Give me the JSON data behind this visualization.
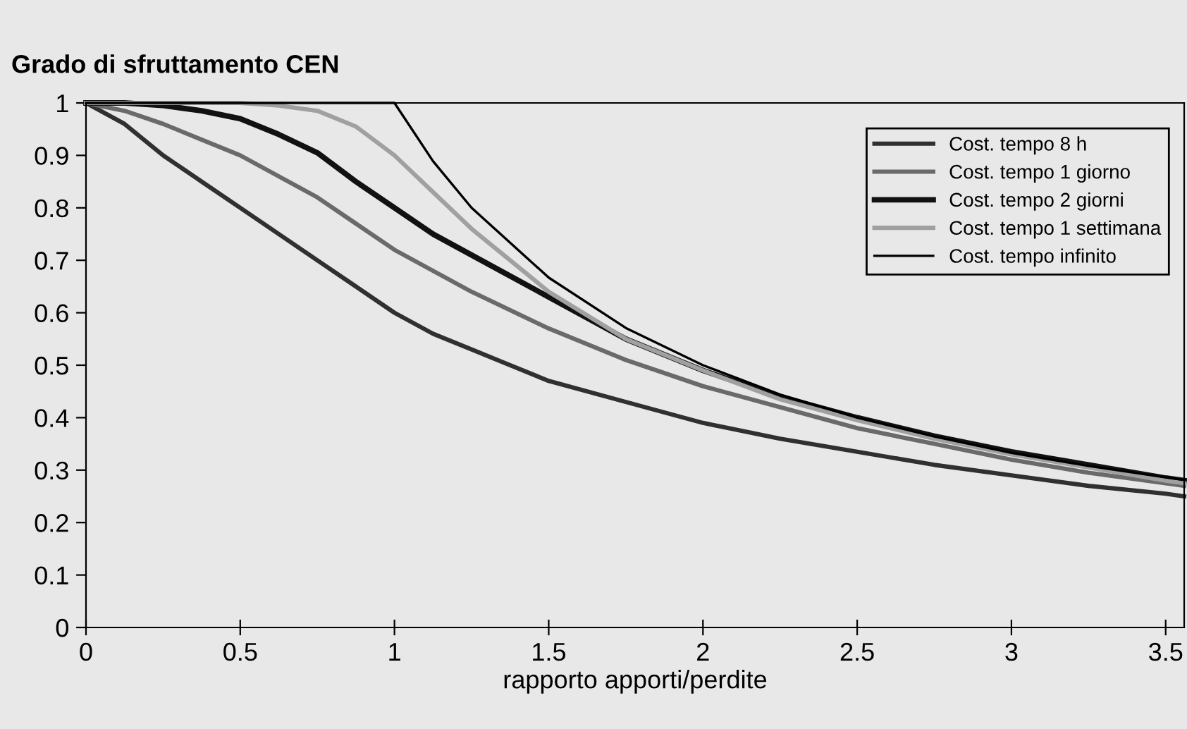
{
  "chart_data": {
    "type": "line",
    "title": "Grado di sfruttamento CEN",
    "xlabel": "rapporto apporti/perdite",
    "x": [
      0,
      0.125,
      0.25,
      0.375,
      0.5,
      0.625,
      0.75,
      0.875,
      1,
      1.125,
      1.25,
      1.5,
      1.75,
      2,
      2.25,
      2.5,
      2.75,
      3,
      3.25,
      3.5,
      3.56
    ],
    "series": [
      {
        "name": "Cost. tempo 8 h",
        "color": "#303030",
        "values": [
          1,
          0.96,
          0.9,
          0.85,
          0.8,
          0.75,
          0.7,
          0.65,
          0.6,
          0.56,
          0.53,
          0.47,
          0.43,
          0.39,
          0.36,
          0.335,
          0.31,
          0.29,
          0.27,
          0.255,
          0.25
        ]
      },
      {
        "name": "Cost. tempo 1 giorno",
        "color": "#6a6a6a",
        "values": [
          1,
          0.985,
          0.96,
          0.93,
          0.9,
          0.86,
          0.82,
          0.77,
          0.72,
          0.68,
          0.64,
          0.57,
          0.51,
          0.46,
          0.42,
          0.38,
          0.35,
          0.32,
          0.295,
          0.275,
          0.27
        ]
      },
      {
        "name": "Cost. tempo 2 giorni",
        "color": "#111111",
        "values": [
          1,
          1,
          0.995,
          0.985,
          0.97,
          0.94,
          0.905,
          0.85,
          0.8,
          0.75,
          0.71,
          0.63,
          0.55,
          0.49,
          0.44,
          0.4,
          0.365,
          0.335,
          0.31,
          0.285,
          0.28
        ]
      },
      {
        "name": "Cost. tempo 1 settimana",
        "color": "#a0a0a0",
        "values": [
          1,
          1,
          1,
          1,
          1,
          0.995,
          0.985,
          0.955,
          0.9,
          0.83,
          0.76,
          0.64,
          0.55,
          0.49,
          0.435,
          0.395,
          0.36,
          0.33,
          0.305,
          0.28,
          0.275
        ]
      },
      {
        "name": "Cost. tempo infinito",
        "color": "#000000",
        "values": [
          1,
          1,
          1,
          1,
          1,
          1,
          1,
          1,
          1,
          0.889,
          0.8,
          0.667,
          0.571,
          0.5,
          0.444,
          0.4,
          0.364,
          0.333,
          0.308,
          0.286,
          0.281
        ]
      }
    ],
    "xlim": [
      0,
      3.56
    ],
    "ylim": [
      0,
      1
    ],
    "xticks": [
      0,
      0.5,
      1,
      1.5,
      2,
      2.5,
      3,
      3.5
    ],
    "yticks": [
      0,
      0.1,
      0.2,
      0.3,
      0.4,
      0.5,
      0.6,
      0.7,
      0.8,
      0.9,
      1
    ],
    "grid": false,
    "legend": "top right",
    "marker": "none",
    "line_style": "solid"
  }
}
